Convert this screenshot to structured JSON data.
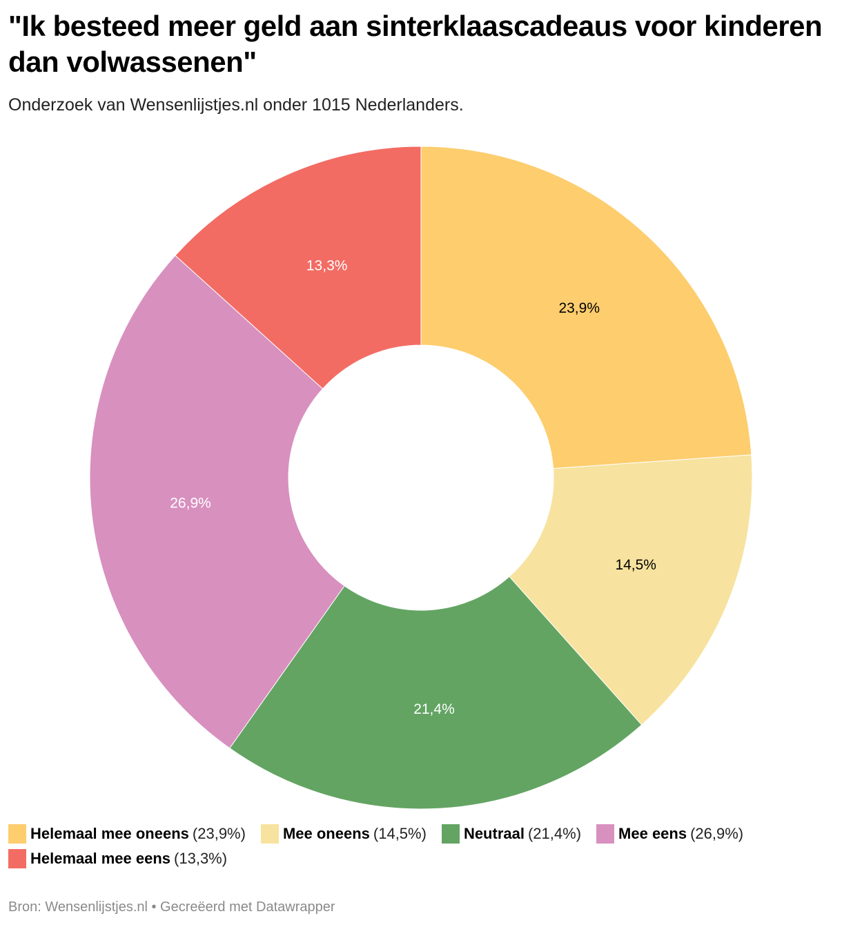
{
  "header": {
    "title": "\"Ik besteed meer geld aan sinterklaascadeaus voor kinderen dan volwassenen\"",
    "subtitle": "Onderzoek van Wensenlijstjes.nl onder 1015 Nederlanders."
  },
  "legend": [
    {
      "name": "Helemaal mee oneens",
      "value": "(23,9%)",
      "color": "#fdcd6e"
    },
    {
      "name": "Mee oneens",
      "value": "(14,5%)",
      "color": "#f7e39f"
    },
    {
      "name": "Neutraal",
      "value": "(21,4%)",
      "color": "#63a463"
    },
    {
      "name": "Mee eens",
      "value": "(26,9%)",
      "color": "#d890bf"
    },
    {
      "name": "Helemaal mee eens",
      "value": "(13,3%)",
      "color": "#f26c64"
    }
  ],
  "footer": {
    "source": "Bron: Wensenlijstjes.nl • Gecreëerd met Datawrapper"
  },
  "chart_data": {
    "type": "pie",
    "variant": "donut",
    "title": "\"Ik besteed meer geld aan sinterklaascadeaus voor kinderen dan volwassenen\"",
    "subtitle": "Onderzoek van Wensenlijstjes.nl onder 1015 Nederlanders.",
    "categories": [
      "Helemaal mee oneens",
      "Mee oneens",
      "Neutraal",
      "Mee eens",
      "Helemaal mee eens"
    ],
    "values": [
      23.9,
      14.5,
      21.4,
      26.9,
      13.3
    ],
    "labels": [
      "23,9%",
      "14,5%",
      "21,4%",
      "26,9%",
      "13,3%"
    ],
    "colors": [
      "#fdcd6e",
      "#f7e39f",
      "#63a463",
      "#d890bf",
      "#f26c64"
    ],
    "label_colors": [
      "#000000",
      "#000000",
      "#ffffff",
      "#ffffff",
      "#ffffff"
    ],
    "start_angle": "12 o'clock, clockwise",
    "legend_position": "bottom",
    "source": "Bron: Wensenlijstjes.nl"
  }
}
